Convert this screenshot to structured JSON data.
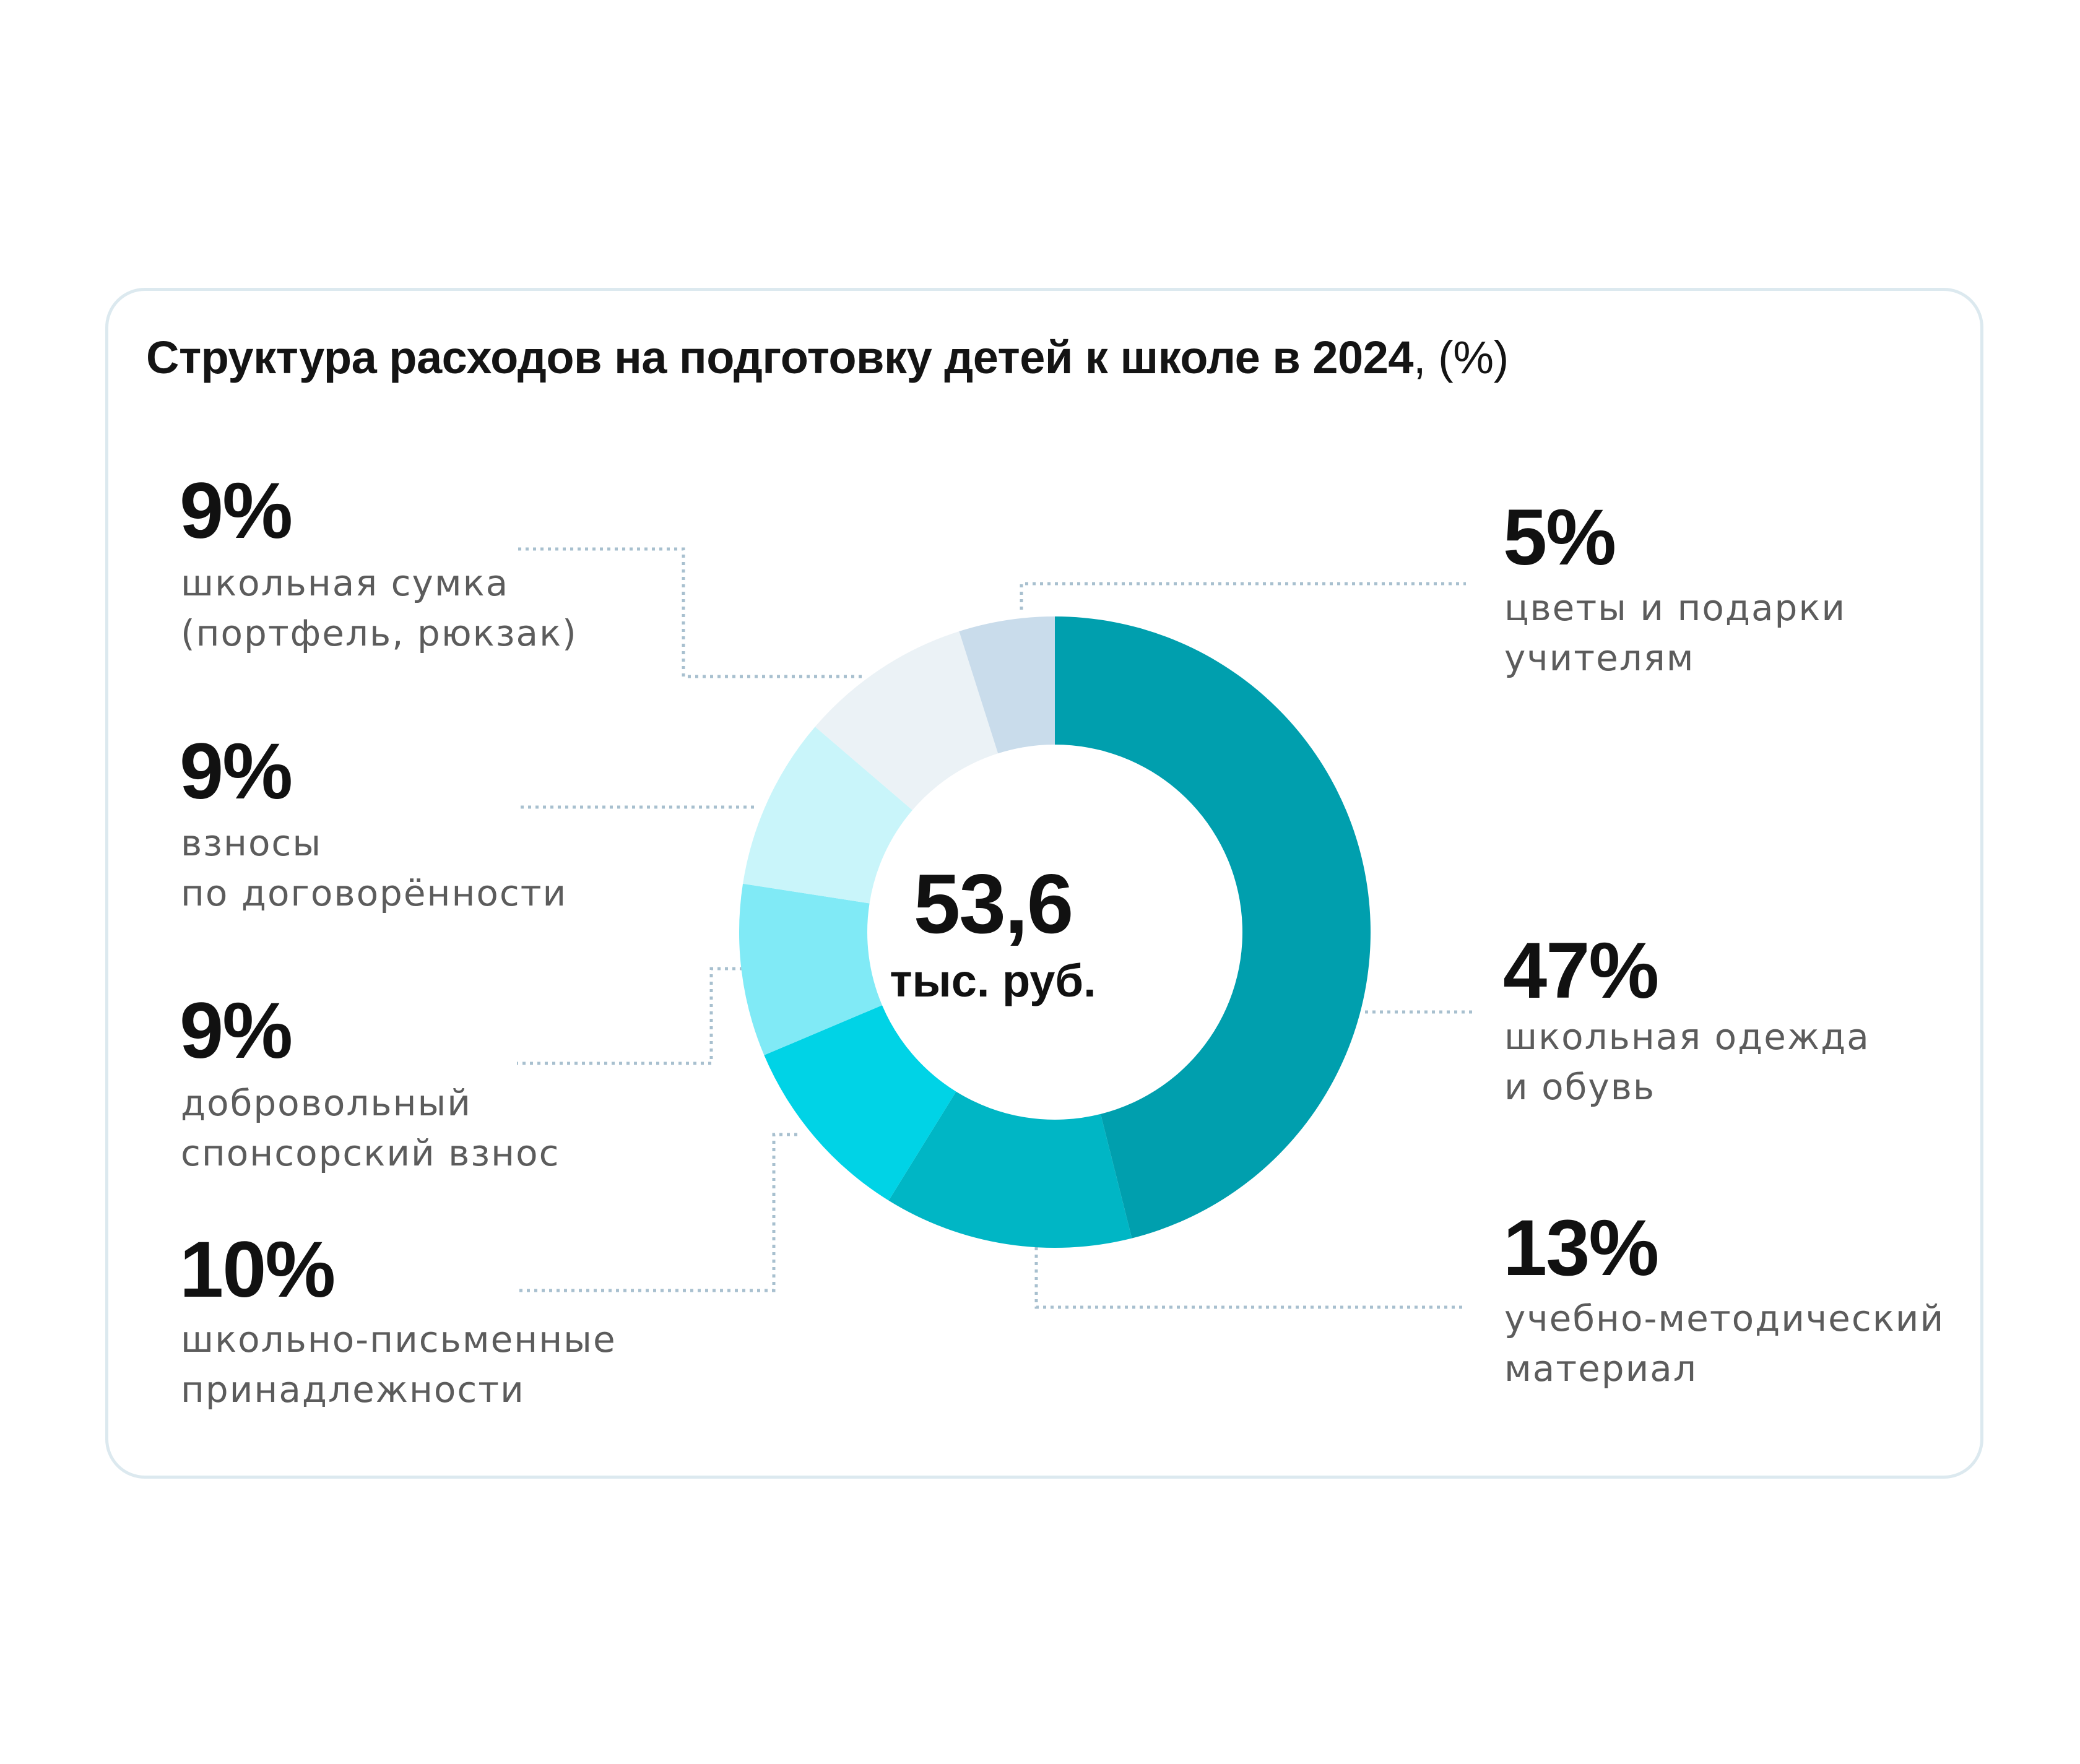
{
  "title": "Структура расходов на подготовку детей к школе в 2024",
  "title_unit": ", (%)",
  "center": {
    "value": "53,6",
    "unit": "тыс. руб."
  },
  "chart_data": {
    "type": "pie",
    "variant": "donut",
    "title": "Структура расходов на подготовку детей к школе в 2024, (%)",
    "unit": "%",
    "total": "53,6 тыс. руб.",
    "slices": [
      {
        "value": 47,
        "label": "47%",
        "line1": "школьная одежда",
        "line2": "и обувь",
        "color": "#009fae"
      },
      {
        "value": 13,
        "label": "13%",
        "line1": "учебно-методический",
        "line2": "материал",
        "color": "#00b6c5"
      },
      {
        "value": 10,
        "label": "10%",
        "line1": "школьно-письменные",
        "line2": "принадлежности",
        "color": "#00d3e6"
      },
      {
        "value": 9,
        "label": "9%",
        "line1": "добровольный",
        "line2": "спонсорский взнос",
        "color": "#80eaf6"
      },
      {
        "value": 9,
        "label": "9%",
        "line1": "взносы",
        "line2": "по договорённости",
        "color": "#c9f5fa"
      },
      {
        "value": 9,
        "label": "9%",
        "line1": "школьная сумка",
        "line2": "(портфель, рюкзак)",
        "color": "#ebf2f6"
      },
      {
        "value": 5,
        "label": "5%",
        "line1": "цветы и подарки",
        "line2": "учителям",
        "color": "#c9dceb"
      }
    ]
  }
}
